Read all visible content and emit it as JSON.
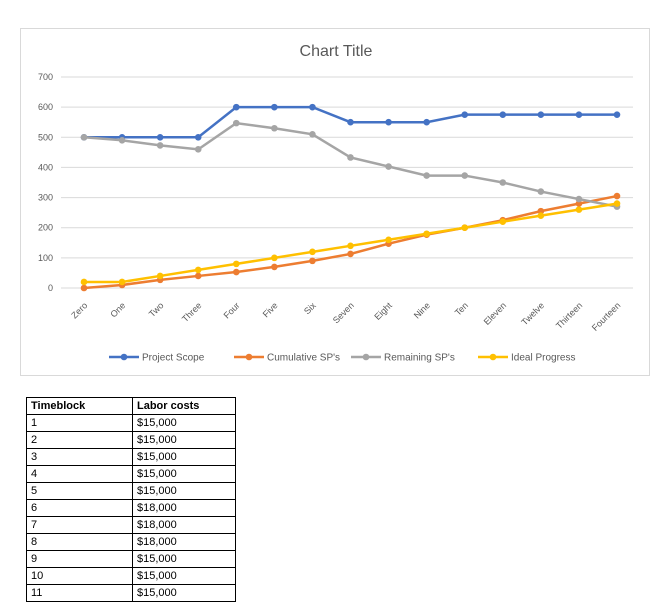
{
  "chart_data": {
    "type": "line",
    "title": "Chart Title",
    "categories": [
      "Zero",
      "One",
      "Two",
      "Three",
      "Four",
      "Five",
      "Six",
      "Seven",
      "Eight",
      "Nine",
      "Ten",
      "Eleven",
      "Twelve",
      "Thirteen",
      "Fourteen"
    ],
    "ylim": [
      0,
      700
    ],
    "yticks": [
      0,
      100,
      200,
      300,
      400,
      500,
      600,
      700
    ],
    "grid": true,
    "legend_placement": "bottom",
    "series": [
      {
        "name": "Project Scope",
        "color": "#4472c4",
        "values": [
          500,
          500,
          500,
          500,
          600,
          600,
          600,
          550,
          550,
          550,
          575,
          575,
          575,
          575,
          575
        ]
      },
      {
        "name": "Cumulative SP's",
        "color": "#ed7d31",
        "values": [
          0,
          10,
          27,
          40,
          53,
          70,
          90,
          113,
          147,
          177,
          200,
          225,
          255,
          280,
          305
        ]
      },
      {
        "name": "Remaining SP's",
        "color": "#a5a5a5",
        "values": [
          500,
          490,
          473,
          460,
          547,
          530,
          510,
          433,
          403,
          373,
          373,
          350,
          320,
          295,
          270
        ]
      },
      {
        "name": "Ideal Progress",
        "color": "#ffc000",
        "values": [
          20,
          20,
          40,
          60,
          80,
          100,
          120,
          140,
          160,
          180,
          200,
          220,
          240,
          260,
          280
        ]
      }
    ]
  },
  "table": {
    "headers": [
      "Timeblock",
      "Labor costs"
    ],
    "rows": [
      [
        "1",
        "$15,000"
      ],
      [
        "2",
        "$15,000"
      ],
      [
        "3",
        "$15,000"
      ],
      [
        "4",
        "$15,000"
      ],
      [
        "5",
        "$15,000"
      ],
      [
        "6",
        "$18,000"
      ],
      [
        "7",
        "$18,000"
      ],
      [
        "8",
        "$18,000"
      ],
      [
        "9",
        "$15,000"
      ],
      [
        "10",
        "$15,000"
      ],
      [
        "11",
        "$15,000"
      ]
    ]
  }
}
